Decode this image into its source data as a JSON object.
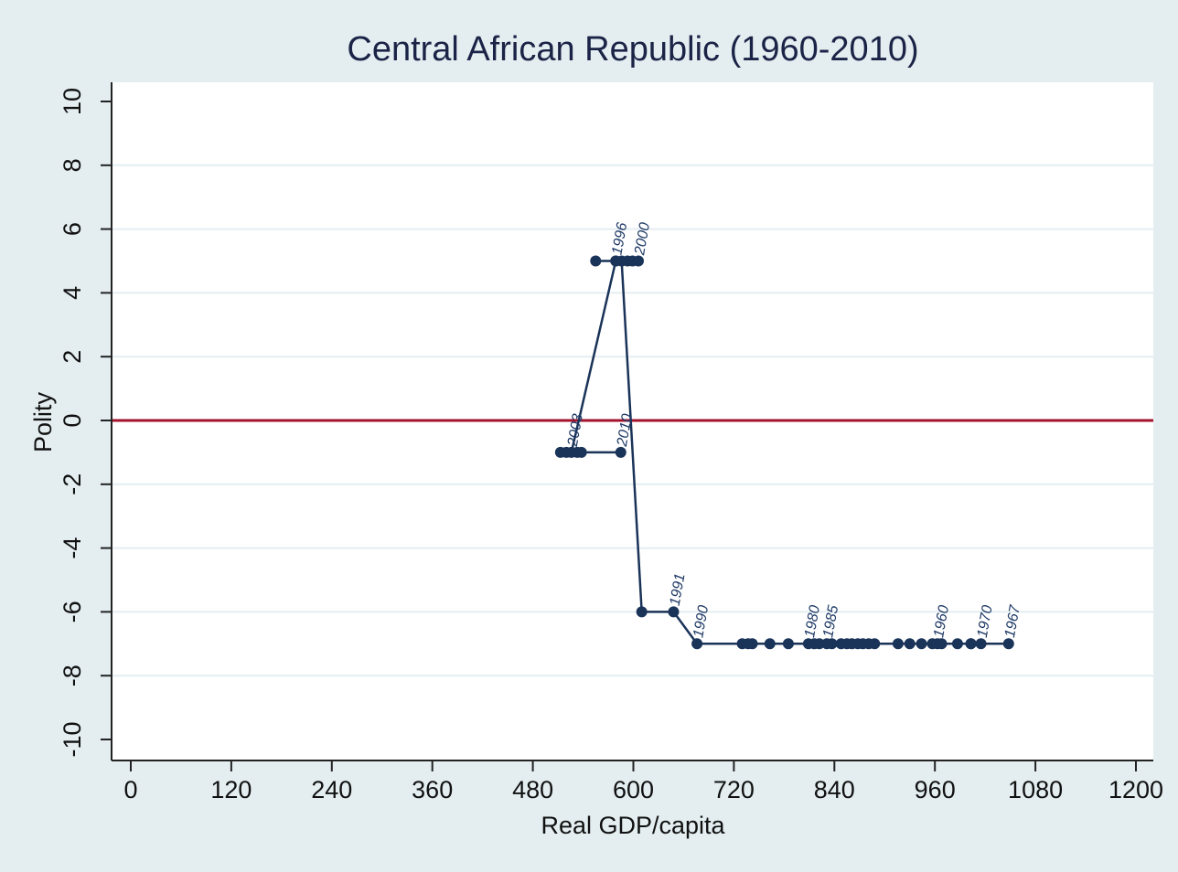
{
  "chart_data": {
    "type": "line",
    "title": "Central African Republic (1960-2010)",
    "xlabel": "Real GDP/capita",
    "ylabel": "Polity",
    "xlim": [
      0,
      1200
    ],
    "ylim": [
      -10,
      10
    ],
    "x_ticks": [
      0,
      120,
      240,
      360,
      480,
      600,
      720,
      840,
      960,
      1080,
      1200
    ],
    "y_ticks": [
      -10,
      -8,
      -6,
      -4,
      -2,
      0,
      2,
      4,
      6,
      8,
      10
    ],
    "grid": true,
    "reference_line": {
      "y": 0,
      "color": "#a4122c"
    },
    "series_color": "#1a3358",
    "points": [
      {
        "x": 963,
        "y": -7
      },
      {
        "x": 968,
        "y": -7
      },
      {
        "x": 957,
        "y": -7
      },
      {
        "x": 944,
        "y": -7
      },
      {
        "x": 930,
        "y": -7
      },
      {
        "x": 916,
        "y": -7
      },
      {
        "x": 1048,
        "y": -7
      },
      {
        "x": 1015,
        "y": -7
      },
      {
        "x": 1003,
        "y": -7
      },
      {
        "x": 987,
        "y": -7
      },
      {
        "x": 1003,
        "y": -7
      },
      {
        "x": 888,
        "y": -7
      },
      {
        "x": 881,
        "y": -7
      },
      {
        "x": 874,
        "y": -7
      },
      {
        "x": 868,
        "y": -7
      },
      {
        "x": 861,
        "y": -7
      },
      {
        "x": 855,
        "y": -7
      },
      {
        "x": 848,
        "y": -7
      },
      {
        "x": 837,
        "y": -7
      },
      {
        "x": 831,
        "y": -7
      },
      {
        "x": 809,
        "y": -7
      },
      {
        "x": 816,
        "y": -7
      },
      {
        "x": 822,
        "y": -7
      },
      {
        "x": 785,
        "y": -7
      },
      {
        "x": 763,
        "y": -7
      },
      {
        "x": 742,
        "y": -7
      },
      {
        "x": 737,
        "y": -7
      },
      {
        "x": 730,
        "y": -7
      },
      {
        "x": 676,
        "y": -7
      },
      {
        "x": 648,
        "y": -6
      },
      {
        "x": 610,
        "y": -6
      },
      {
        "x": 586,
        "y": 5
      },
      {
        "x": 555,
        "y": 5
      },
      {
        "x": 579,
        "y": 5
      },
      {
        "x": 593,
        "y": 5
      },
      {
        "x": 599,
        "y": 5
      },
      {
        "x": 606,
        "y": 5
      },
      {
        "x": 579,
        "y": 5
      },
      {
        "x": 526,
        "y": -1
      },
      {
        "x": 513,
        "y": -1
      },
      {
        "x": 520,
        "y": -1
      },
      {
        "x": 533,
        "y": -1
      },
      {
        "x": 538,
        "y": -1
      },
      {
        "x": 585,
        "y": -1
      }
    ],
    "labels": [
      {
        "text": "1960",
        "x": 963,
        "y": -7
      },
      {
        "text": "1967",
        "x": 1048,
        "y": -7
      },
      {
        "text": "1970",
        "x": 1015,
        "y": -7
      },
      {
        "text": "1980",
        "x": 809,
        "y": -7
      },
      {
        "text": "1985",
        "x": 831,
        "y": -7
      },
      {
        "text": "1990",
        "x": 676,
        "y": -7
      },
      {
        "text": "1991",
        "x": 648,
        "y": -6
      },
      {
        "text": "1996",
        "x": 579,
        "y": 5
      },
      {
        "text": "2000",
        "x": 606,
        "y": 5
      },
      {
        "text": "2003",
        "x": 526,
        "y": -1
      },
      {
        "text": "2010",
        "x": 585,
        "y": -1
      }
    ]
  }
}
